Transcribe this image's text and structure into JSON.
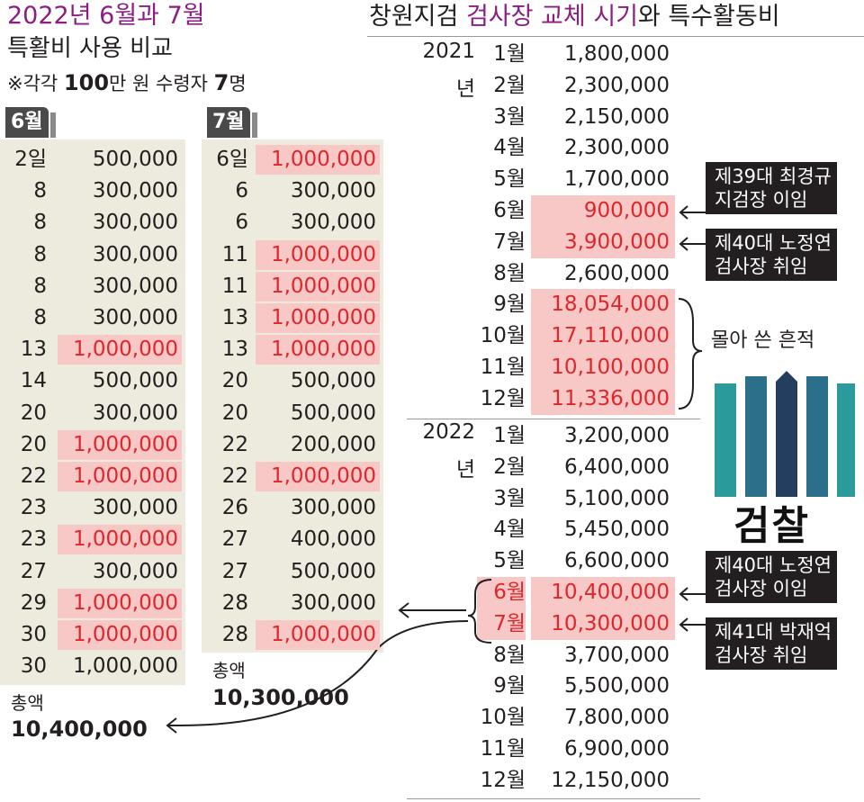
{
  "left": {
    "title": "2022년 6월과 7월",
    "subtitle": "특활비 사용 비교",
    "note_prefix": "※각각 ",
    "note_num1": "100",
    "note_mid": "만 원 수령자 ",
    "note_num2": "7",
    "note_suffix": "명",
    "june": {
      "tab": "6월",
      "rows": [
        {
          "day": "2일",
          "amount": "500,000",
          "hl": false
        },
        {
          "day": "8",
          "amount": "300,000",
          "hl": false
        },
        {
          "day": "8",
          "amount": "300,000",
          "hl": false
        },
        {
          "day": "8",
          "amount": "300,000",
          "hl": false
        },
        {
          "day": "8",
          "amount": "300,000",
          "hl": false
        },
        {
          "day": "8",
          "amount": "300,000",
          "hl": false
        },
        {
          "day": "13",
          "amount": "1,000,000",
          "hl": true
        },
        {
          "day": "14",
          "amount": "500,000",
          "hl": false
        },
        {
          "day": "20",
          "amount": "300,000",
          "hl": false
        },
        {
          "day": "20",
          "amount": "1,000,000",
          "hl": true
        },
        {
          "day": "22",
          "amount": "1,000,000",
          "hl": true
        },
        {
          "day": "23",
          "amount": "300,000",
          "hl": false
        },
        {
          "day": "23",
          "amount": "1,000,000",
          "hl": true
        },
        {
          "day": "27",
          "amount": "300,000",
          "hl": false
        },
        {
          "day": "29",
          "amount": "1,000,000",
          "hl": true
        },
        {
          "day": "30",
          "amount": "1,000,000",
          "hl": true
        },
        {
          "day": "30",
          "amount": "1,000,000",
          "hl": false
        }
      ],
      "total_label": "총액",
      "total_value": "10,400,000"
    },
    "july": {
      "tab": "7월",
      "rows": [
        {
          "day": "6일",
          "amount": "1,000,000",
          "hl": true
        },
        {
          "day": "6",
          "amount": "300,000",
          "hl": false
        },
        {
          "day": "6",
          "amount": "300,000",
          "hl": false
        },
        {
          "day": "11",
          "amount": "1,000,000",
          "hl": true
        },
        {
          "day": "11",
          "amount": "1,000,000",
          "hl": true
        },
        {
          "day": "13",
          "amount": "1,000,000",
          "hl": true
        },
        {
          "day": "13",
          "amount": "1,000,000",
          "hl": true
        },
        {
          "day": "20",
          "amount": "500,000",
          "hl": false
        },
        {
          "day": "20",
          "amount": "500,000",
          "hl": false
        },
        {
          "day": "22",
          "amount": "200,000",
          "hl": false
        },
        {
          "day": "22",
          "amount": "1,000,000",
          "hl": true
        },
        {
          "day": "26",
          "amount": "300,000",
          "hl": false
        },
        {
          "day": "27",
          "amount": "400,000",
          "hl": false
        },
        {
          "day": "27",
          "amount": "500,000",
          "hl": false
        },
        {
          "day": "28",
          "amount": "300,000",
          "hl": false
        },
        {
          "day": "28",
          "amount": "1,000,000",
          "hl": true
        }
      ],
      "total_label": "총액",
      "total_value": "10,300,000"
    }
  },
  "right": {
    "title_a": "창원지검 ",
    "title_b": "검사장 교체 시기",
    "title_c": "와 특수활동비",
    "years": [
      {
        "label1": "2021",
        "label2": "년",
        "rows": [
          {
            "month": "1월",
            "amount": "1,800,000",
            "hl": false,
            "red_month": false
          },
          {
            "month": "2월",
            "amount": "2,300,000",
            "hl": false,
            "red_month": false
          },
          {
            "month": "3월",
            "amount": "2,150,000",
            "hl": false,
            "red_month": false
          },
          {
            "month": "4월",
            "amount": "2,300,000",
            "hl": false,
            "red_month": false
          },
          {
            "month": "5월",
            "amount": "1,700,000",
            "hl": false,
            "red_month": false
          },
          {
            "month": "6월",
            "amount": "900,000",
            "hl": true,
            "red_month": false
          },
          {
            "month": "7월",
            "amount": "3,900,000",
            "hl": true,
            "red_month": false
          },
          {
            "month": "8월",
            "amount": "2,600,000",
            "hl": false,
            "red_month": false
          },
          {
            "month": "9월",
            "amount": "18,054,000",
            "hl": true,
            "red_month": false
          },
          {
            "month": "10월",
            "amount": "17,110,000",
            "hl": true,
            "red_month": false
          },
          {
            "month": "11월",
            "amount": "10,100,000",
            "hl": true,
            "red_month": false
          },
          {
            "month": "12월",
            "amount": "11,336,000",
            "hl": true,
            "red_month": false
          }
        ]
      },
      {
        "label1": "2022",
        "label2": "년",
        "rows": [
          {
            "month": "1월",
            "amount": "3,200,000",
            "hl": false,
            "red_month": false
          },
          {
            "month": "2월",
            "amount": "6,400,000",
            "hl": false,
            "red_month": false
          },
          {
            "month": "3월",
            "amount": "5,100,000",
            "hl": false,
            "red_month": false
          },
          {
            "month": "4월",
            "amount": "5,450,000",
            "hl": false,
            "red_month": false
          },
          {
            "month": "5월",
            "amount": "6,600,000",
            "hl": false,
            "red_month": false
          },
          {
            "month": "6월",
            "amount": "10,400,000",
            "hl": true,
            "red_month": true
          },
          {
            "month": "7월",
            "amount": "10,300,000",
            "hl": true,
            "red_month": true
          },
          {
            "month": "8월",
            "amount": "3,700,000",
            "hl": false,
            "red_month": false
          },
          {
            "month": "9월",
            "amount": "5,500,000",
            "hl": false,
            "red_month": false
          },
          {
            "month": "10월",
            "amount": "7,800,000",
            "hl": false,
            "red_month": false
          },
          {
            "month": "11월",
            "amount": "6,900,000",
            "hl": false,
            "red_month": false
          },
          {
            "month": "12월",
            "amount": "12,150,000",
            "hl": false,
            "red_month": false
          }
        ]
      }
    ],
    "callouts": [
      {
        "line1": "제39대 최경규",
        "line2": "지검장 이임"
      },
      {
        "line1": "제40대 노정연",
        "line2": "검사장 취임"
      },
      {
        "line1": "제40대 노정연",
        "line2": "검사장 이임"
      },
      {
        "line1": "제41대 박재억",
        "line2": "검사장 취임"
      }
    ],
    "bracket_label": "몰아 쓴 흔적",
    "logo_text": "검찰"
  },
  "colors": {
    "accent_purple": "#8c1d83",
    "highlight": "#f7c8c6",
    "red_text": "#e0262b",
    "panel_bg": "#ecebde",
    "logo_teal": "#1f8a8a",
    "logo_navy": "#233e5e"
  },
  "chart_data": {
    "type": "table",
    "title": "창원지검 검사장 교체 시기와 특수활동비",
    "series": [
      {
        "name": "2021년",
        "categories": [
          "1월",
          "2월",
          "3월",
          "4월",
          "5월",
          "6월",
          "7월",
          "8월",
          "9월",
          "10월",
          "11월",
          "12월"
        ],
        "values": [
          1800000,
          2300000,
          2150000,
          2300000,
          1700000,
          900000,
          3900000,
          2600000,
          18054000,
          17110000,
          10100000,
          11336000
        ]
      },
      {
        "name": "2022년",
        "categories": [
          "1월",
          "2월",
          "3월",
          "4월",
          "5월",
          "6월",
          "7월",
          "8월",
          "9월",
          "10월",
          "11월",
          "12월"
        ],
        "values": [
          3200000,
          6400000,
          5100000,
          5450000,
          6600000,
          10400000,
          10300000,
          3700000,
          5500000,
          7800000,
          6900000,
          12150000
        ]
      }
    ]
  }
}
